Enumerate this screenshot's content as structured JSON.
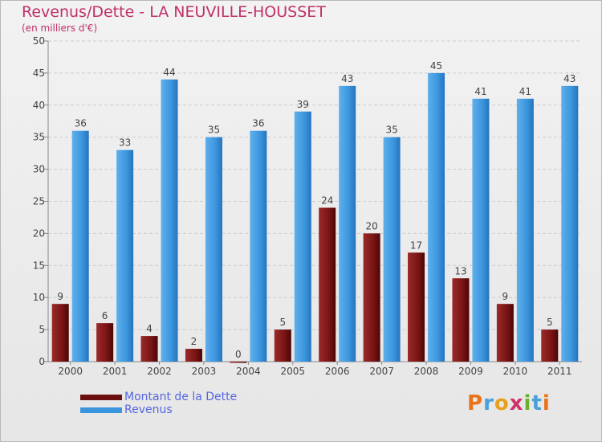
{
  "title": "Revenus/Dette - LA NEUVILLE-HOUSSET",
  "subtitle": "(en milliers d'€)",
  "brand": "Proxiti",
  "colors": {
    "dette": "#7a1414",
    "revenus": "#3b95dd",
    "title": "#c0306a",
    "legend_text": "#5566dd"
  },
  "legend": [
    {
      "label": "Montant de la Dette",
      "color": "#6b0f0f"
    },
    {
      "label": "Revenus",
      "color": "#3b95dd"
    }
  ],
  "chart_data": {
    "type": "bar",
    "categories": [
      "2000",
      "2001",
      "2002",
      "2003",
      "2004",
      "2005",
      "2006",
      "2007",
      "2008",
      "2009",
      "2010",
      "2011"
    ],
    "series": [
      {
        "name": "Montant de la Dette",
        "values": [
          9,
          6,
          4,
          2,
          0,
          5,
          24,
          20,
          17,
          13,
          9,
          5
        ]
      },
      {
        "name": "Revenus",
        "values": [
          36,
          33,
          44,
          35,
          36,
          39,
          43,
          35,
          45,
          41,
          41,
          43
        ]
      }
    ],
    "ylim": [
      0,
      50
    ],
    "yticks": [
      0,
      5,
      10,
      15,
      20,
      25,
      30,
      35,
      40,
      45,
      50
    ],
    "grid": true,
    "legend_position": "bottom-left"
  }
}
